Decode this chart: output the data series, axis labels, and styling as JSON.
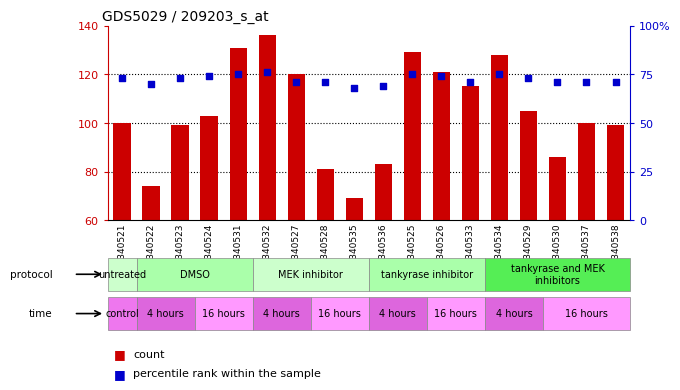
{
  "title": "GDS5029 / 209203_s_at",
  "samples": [
    "GSM1340521",
    "GSM1340522",
    "GSM1340523",
    "GSM1340524",
    "GSM1340531",
    "GSM1340532",
    "GSM1340527",
    "GSM1340528",
    "GSM1340535",
    "GSM1340536",
    "GSM1340525",
    "GSM1340526",
    "GSM1340533",
    "GSM1340534",
    "GSM1340529",
    "GSM1340530",
    "GSM1340537",
    "GSM1340538"
  ],
  "bar_values": [
    100,
    74,
    99,
    103,
    131,
    136,
    120,
    81,
    69,
    83,
    129,
    121,
    115,
    128,
    105,
    86,
    100,
    99
  ],
  "dot_values": [
    73,
    70,
    73,
    74,
    75,
    76,
    71,
    71,
    68,
    69,
    75,
    74,
    71,
    75,
    73,
    71,
    71,
    71
  ],
  "ylim_left": [
    60,
    140
  ],
  "ylim_right": [
    0,
    100
  ],
  "yticks_left": [
    60,
    80,
    100,
    120,
    140
  ],
  "yticks_right": [
    0,
    25,
    50,
    75,
    100
  ],
  "bar_color": "#cc0000",
  "dot_color": "#0000cc",
  "bg_color": "#ffffff",
  "protocol_groups": [
    {
      "label": "untreated",
      "start": 0,
      "end": 1,
      "color": "#ccffcc"
    },
    {
      "label": "DMSO",
      "start": 1,
      "end": 5,
      "color": "#aaffaa"
    },
    {
      "label": "MEK inhibitor",
      "start": 5,
      "end": 9,
      "color": "#ccffcc"
    },
    {
      "label": "tankyrase inhibitor",
      "start": 9,
      "end": 13,
      "color": "#aaffaa"
    },
    {
      "label": "tankyrase and MEK\ninhibitors",
      "start": 13,
      "end": 18,
      "color": "#55ee55"
    }
  ],
  "time_groups": [
    {
      "label": "control",
      "start": 0,
      "end": 1,
      "color": "#ee77ee"
    },
    {
      "label": "4 hours",
      "start": 1,
      "end": 3,
      "color": "#dd66dd"
    },
    {
      "label": "16 hours",
      "start": 3,
      "end": 5,
      "color": "#ff99ff"
    },
    {
      "label": "4 hours",
      "start": 5,
      "end": 7,
      "color": "#dd66dd"
    },
    {
      "label": "16 hours",
      "start": 7,
      "end": 9,
      "color": "#ff99ff"
    },
    {
      "label": "4 hours",
      "start": 9,
      "end": 11,
      "color": "#dd66dd"
    },
    {
      "label": "16 hours",
      "start": 11,
      "end": 13,
      "color": "#ff99ff"
    },
    {
      "label": "4 hours",
      "start": 13,
      "end": 15,
      "color": "#dd66dd"
    },
    {
      "label": "16 hours",
      "start": 15,
      "end": 18,
      "color": "#ff99ff"
    }
  ],
  "right_axis_color": "#0000cc",
  "left_axis_color": "#cc0000"
}
